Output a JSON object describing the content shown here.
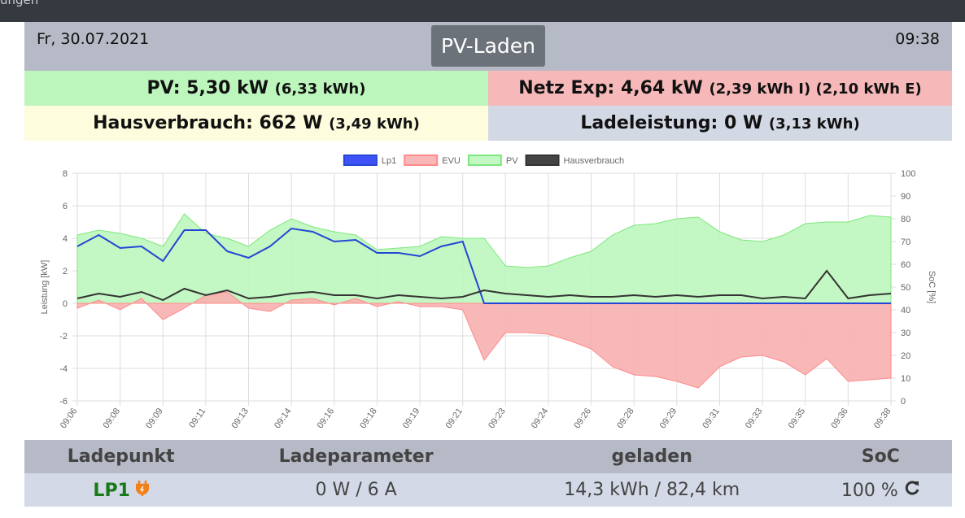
{
  "topbar": "ungen",
  "header": {
    "date": "Fr, 30.07.2021",
    "mode": "PV-Laden",
    "time": "09:38"
  },
  "tiles": [
    {
      "main": "PV: 5,30 kW",
      "sub": "(6,33 kWh)"
    },
    {
      "main": "Netz Exp: 4,64 kW",
      "sub": "(2,39 kWh I) (2,10 kWh E)"
    },
    {
      "main": "Hausverbrauch: 662 W",
      "sub": "(3,49 kWh)"
    },
    {
      "main": "Ladeleistung: 0 W",
      "sub": "(3,13 kWh)"
    }
  ],
  "chart_data": {
    "type": "line",
    "y_label": "Leistung [kW]",
    "y2_label": "SoC [%]",
    "categories": [
      "09:06",
      null,
      "09:08",
      null,
      "09:09",
      null,
      "09:11",
      null,
      "09:13",
      null,
      "09:14",
      null,
      "09:16",
      null,
      "09:18",
      null,
      "09:19",
      null,
      "09:21",
      null,
      "09:23",
      null,
      "09:24",
      null,
      "09:26",
      null,
      "09:28",
      null,
      "09:29",
      null,
      "09:31",
      null,
      "09:33",
      null,
      "09:35",
      null,
      "09:36",
      null,
      "09:38"
    ],
    "ylim": [
      -6,
      8
    ],
    "yticks": [
      -6,
      -4,
      -2,
      0,
      2,
      4,
      6,
      8
    ],
    "y2lim": [
      0,
      100
    ],
    "y2ticks": [
      0,
      10,
      20,
      30,
      40,
      50,
      60,
      70,
      80,
      90,
      100
    ],
    "grid": true,
    "series": [
      {
        "name": "PV",
        "color": "#7ee87e",
        "fill": "#bdf6bd",
        "area": true,
        "legend_order": 2,
        "values": [
          4.2,
          4.5,
          4.3,
          4.0,
          3.5,
          5.5,
          4.3,
          4.0,
          3.5,
          4.5,
          5.2,
          4.7,
          4.4,
          4.2,
          3.3,
          3.4,
          3.5,
          4.1,
          4.0,
          4.0,
          2.3,
          2.2,
          2.3,
          2.8,
          3.2,
          4.2,
          4.8,
          4.9,
          5.2,
          5.3,
          4.4,
          3.9,
          3.8,
          4.2,
          4.9,
          5.0,
          5.0,
          5.4,
          5.3
        ]
      },
      {
        "name": "EVU",
        "color": "#ff8a8a",
        "fill": "#f8b0b0",
        "area": true,
        "legend_order": 1,
        "values": [
          -0.3,
          0.2,
          -0.4,
          0.3,
          -1.0,
          -0.3,
          0.5,
          0.7,
          -0.3,
          -0.5,
          0.2,
          0.3,
          -0.1,
          0.3,
          -0.2,
          0.1,
          -0.2,
          -0.2,
          -0.4,
          -3.5,
          -1.8,
          -1.8,
          -1.9,
          -2.3,
          -2.8,
          -3.9,
          -4.4,
          -4.5,
          -4.8,
          -5.2,
          -3.9,
          -3.3,
          -3.2,
          -3.6,
          -4.4,
          -3.4,
          -4.8,
          -4.7,
          -4.6
        ]
      },
      {
        "name": "Lp1",
        "color": "#2446d6",
        "fill": "#3f52f5",
        "area": false,
        "legend_order": 0,
        "values": [
          3.5,
          4.2,
          3.4,
          3.5,
          2.6,
          4.5,
          4.5,
          3.2,
          2.8,
          3.5,
          4.6,
          4.4,
          3.8,
          3.9,
          3.1,
          3.1,
          2.9,
          3.5,
          3.8,
          0,
          0,
          0,
          0,
          0,
          0,
          0,
          0,
          0,
          0,
          0,
          0,
          0,
          0,
          0,
          0,
          0,
          0,
          0,
          0
        ]
      },
      {
        "name": "Hausverbrauch",
        "color": "#333333",
        "fill": "#444444",
        "area": false,
        "legend_order": 3,
        "values": [
          0.3,
          0.6,
          0.4,
          0.7,
          0.2,
          0.9,
          0.5,
          0.8,
          0.3,
          0.4,
          0.6,
          0.7,
          0.5,
          0.5,
          0.3,
          0.5,
          0.4,
          0.3,
          0.4,
          0.8,
          0.6,
          0.5,
          0.4,
          0.5,
          0.4,
          0.4,
          0.5,
          0.4,
          0.5,
          0.4,
          0.5,
          0.5,
          0.3,
          0.4,
          0.3,
          2.0,
          0.3,
          0.5,
          0.6
        ]
      }
    ]
  },
  "table": {
    "header": [
      "Ladepunkt",
      "Ladeparameter",
      "geladen",
      "SoC"
    ],
    "rows": [
      [
        "LP1",
        "0 W / 6 A",
        "14,3 kWh / 82,4 km",
        "100 %"
      ]
    ]
  }
}
